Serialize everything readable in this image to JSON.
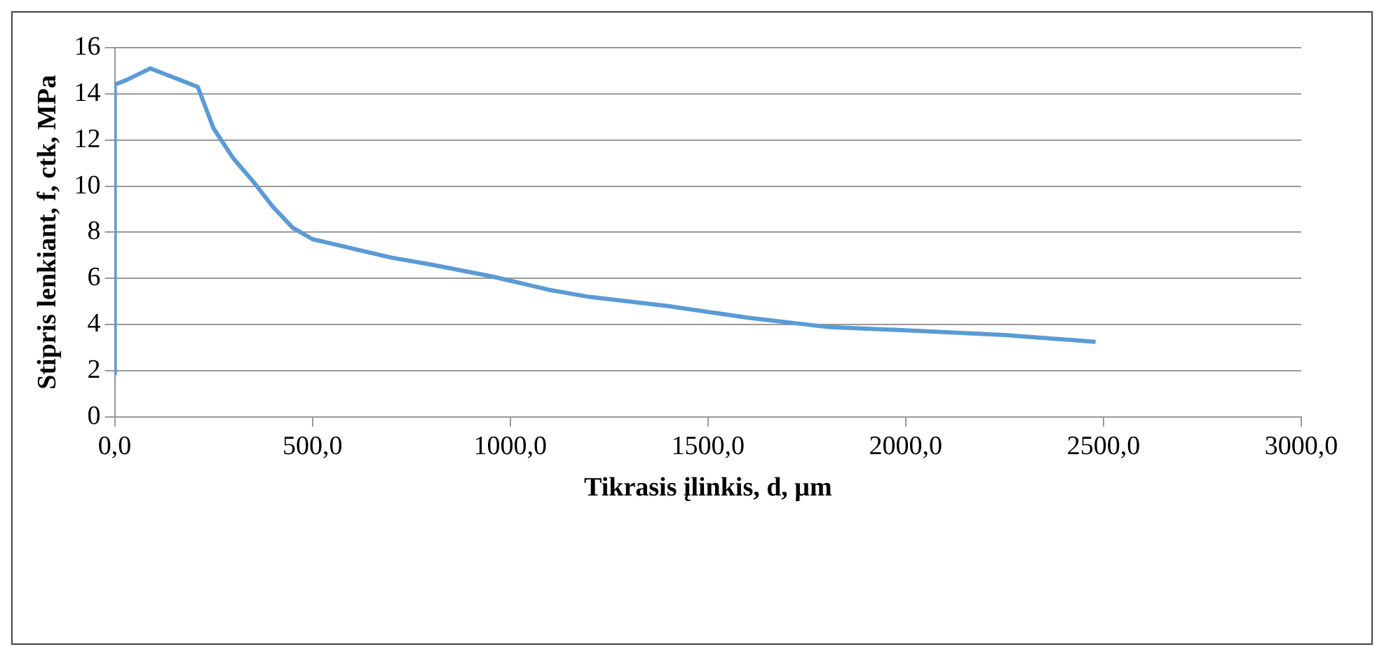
{
  "chart_data": {
    "type": "line",
    "xlabel": "Tikrasis įlinkis, d, μm",
    "ylabel": "Stipris lenkiant, f, ctk, MPa",
    "x": [
      0,
      0,
      30,
      60,
      90,
      120,
      150,
      180,
      210,
      250,
      300,
      350,
      400,
      450,
      500,
      600,
      700,
      800,
      950,
      1000,
      1100,
      1200,
      1400,
      1600,
      1800,
      2000,
      2250,
      2480
    ],
    "series": [
      {
        "color": "#5b9bd5",
        "values": [
          1.8,
          14.4,
          14.6,
          14.85,
          15.1,
          14.9,
          14.7,
          14.5,
          14.3,
          12.5,
          11.2,
          10.2,
          9.1,
          8.2,
          7.7,
          7.3,
          6.9,
          6.6,
          6.1,
          5.9,
          5.5,
          5.2,
          4.8,
          4.3,
          3.9,
          3.75,
          3.55,
          3.25
        ]
      }
    ],
    "xlim": [
      0,
      3000
    ],
    "xticks": [
      {
        "value": 0,
        "label": "0,0"
      },
      {
        "value": 500,
        "label": "500,0"
      },
      {
        "value": 1000,
        "label": "1000,0"
      },
      {
        "value": 1500,
        "label": "1500,0"
      },
      {
        "value": 2000,
        "label": "2000,0"
      },
      {
        "value": 2500,
        "label": "2500,0"
      },
      {
        "value": 3000,
        "label": "3000,0"
      }
    ],
    "ylim": [
      0,
      16
    ],
    "yticks": [
      0,
      2,
      4,
      6,
      8,
      10,
      12,
      14,
      16
    ],
    "grid": "y",
    "legend": false,
    "marker": "none",
    "line_style": "solid"
  }
}
